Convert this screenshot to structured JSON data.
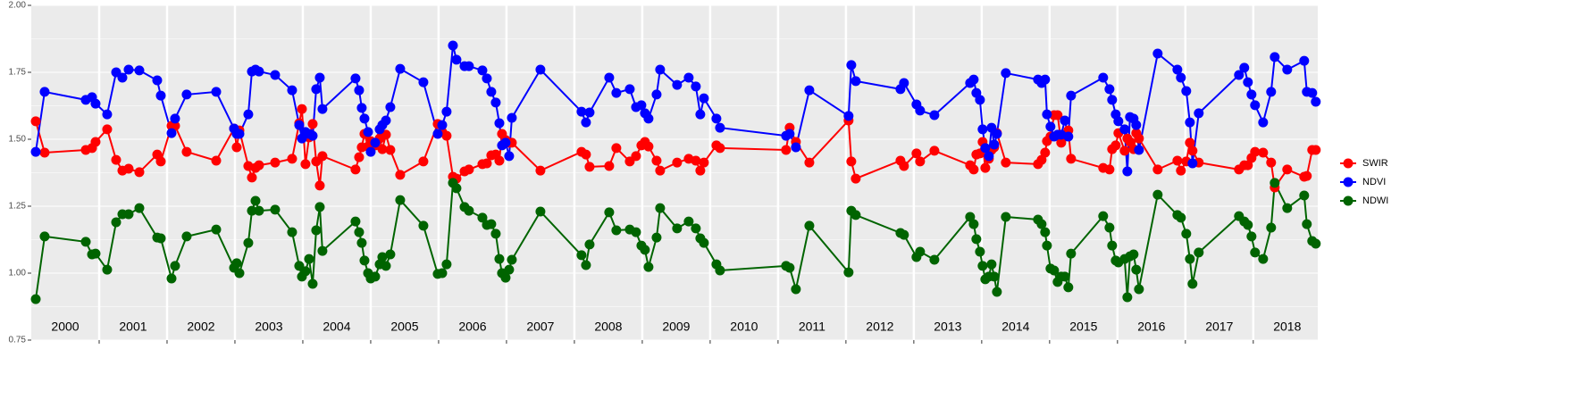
{
  "chart_data": {
    "type": "line",
    "x": [
      2000.066,
      2000.197,
      2000.803,
      2000.895,
      2000.947,
      2001.118,
      2001.25,
      2001.342,
      2001.434,
      2001.592,
      2001.855,
      2001.908,
      2002.066,
      2002.118,
      2002.289,
      2002.724,
      2002.987,
      2003.026,
      2003.066,
      2003.197,
      2003.25,
      2003.303,
      2003.355,
      2003.592,
      2003.842,
      2003.947,
      2003.987,
      2004.039,
      2004.092,
      2004.145,
      2004.197,
      2004.25,
      2004.289,
      2004.776,
      2004.829,
      2004.868,
      2004.908,
      2004.961,
      2005.0,
      2005.066,
      2005.132,
      2005.171,
      2005.224,
      2005.289,
      2005.434,
      2005.776,
      2005.987,
      2006.053,
      2006.118,
      2006.211,
      2006.263,
      2006.382,
      2006.447,
      2006.645,
      2006.711,
      2006.776,
      2006.842,
      2006.895,
      2006.934,
      2006.987,
      2007.039,
      2007.079,
      2007.5,
      2008.105,
      2008.171,
      2008.224,
      2008.513,
      2008.618,
      2008.816,
      2008.908,
      2008.987,
      2009.039,
      2009.092,
      2009.211,
      2009.263,
      2009.513,
      2009.684,
      2009.789,
      2009.855,
      2009.908,
      2010.092,
      2010.145,
      2011.118,
      2011.171,
      2011.263,
      2011.461,
      2012.039,
      2012.079,
      2012.145,
      2012.803,
      2012.855,
      2013.039,
      2013.092,
      2013.303,
      2013.829,
      2013.882,
      2013.921,
      2013.974,
      2014.013,
      2014.053,
      2014.105,
      2014.145,
      2014.184,
      2014.224,
      2014.355,
      2014.829,
      2014.882,
      2014.934,
      2014.961,
      2015.013,
      2015.066,
      2015.118,
      2015.171,
      2015.224,
      2015.276,
      2015.316,
      2015.789,
      2015.882,
      2015.921,
      2015.974,
      2016.013,
      2016.105,
      2016.145,
      2016.184,
      2016.237,
      2016.276,
      2016.316,
      2016.592,
      2016.882,
      2016.934,
      2017.013,
      2017.066,
      2017.105,
      2017.197,
      2017.789,
      2017.868,
      2017.921,
      2017.974,
      2018.026,
      2018.145,
      2018.263,
      2018.316,
      2018.5,
      2018.75,
      2018.789,
      2018.868,
      2018.921
    ],
    "series": [
      {
        "name": "SWIR",
        "color": "#ff0000",
        "values": [
          1.567,
          1.45,
          1.46,
          1.467,
          1.49,
          1.537,
          1.423,
          1.383,
          1.39,
          1.377,
          1.443,
          1.417,
          1.55,
          1.55,
          1.453,
          1.42,
          1.54,
          1.47,
          1.533,
          1.4,
          1.357,
          1.393,
          1.403,
          1.413,
          1.427,
          1.56,
          1.613,
          1.407,
          1.507,
          1.557,
          1.417,
          1.327,
          1.437,
          1.387,
          1.433,
          1.47,
          1.52,
          1.473,
          1.493,
          1.477,
          1.503,
          1.463,
          1.517,
          1.46,
          1.367,
          1.417,
          1.557,
          1.527,
          1.513,
          1.36,
          1.353,
          1.38,
          1.387,
          1.407,
          1.41,
          1.44,
          1.443,
          1.42,
          1.52,
          1.497,
          1.487,
          1.487,
          1.383,
          1.453,
          1.443,
          1.397,
          1.4,
          1.467,
          1.417,
          1.437,
          1.477,
          1.49,
          1.473,
          1.42,
          1.383,
          1.413,
          1.427,
          1.42,
          1.383,
          1.413,
          1.477,
          1.467,
          1.46,
          1.543,
          1.49,
          1.413,
          1.57,
          1.417,
          1.353,
          1.42,
          1.4,
          1.447,
          1.417,
          1.457,
          1.403,
          1.387,
          1.443,
          1.447,
          1.49,
          1.393,
          1.427,
          1.46,
          1.47,
          1.523,
          1.413,
          1.407,
          1.423,
          1.45,
          1.493,
          1.51,
          1.59,
          1.59,
          1.487,
          1.51,
          1.533,
          1.427,
          1.393,
          1.387,
          1.463,
          1.477,
          1.523,
          1.457,
          1.503,
          1.49,
          1.463,
          1.523,
          1.503,
          1.387,
          1.42,
          1.383,
          1.417,
          1.487,
          1.457,
          1.413,
          1.387,
          1.403,
          1.403,
          1.43,
          1.453,
          1.45,
          1.413,
          1.32,
          1.387,
          1.36,
          1.363,
          1.46,
          1.46
        ]
      },
      {
        "name": "NDVI",
        "color": "#0000ff",
        "values": [
          1.453,
          1.677,
          1.647,
          1.657,
          1.633,
          1.593,
          1.75,
          1.73,
          1.76,
          1.757,
          1.72,
          1.663,
          1.523,
          1.577,
          1.667,
          1.677,
          1.54,
          1.52,
          1.52,
          1.593,
          1.753,
          1.76,
          1.753,
          1.74,
          1.683,
          1.553,
          1.503,
          1.527,
          1.52,
          1.513,
          1.687,
          1.73,
          1.613,
          1.727,
          1.683,
          1.617,
          1.577,
          1.527,
          1.453,
          1.487,
          1.537,
          1.553,
          1.57,
          1.62,
          1.763,
          1.713,
          1.52,
          1.553,
          1.603,
          1.85,
          1.797,
          1.773,
          1.773,
          1.757,
          1.727,
          1.677,
          1.637,
          1.56,
          1.477,
          1.487,
          1.437,
          1.58,
          1.76,
          1.603,
          1.563,
          1.6,
          1.73,
          1.673,
          1.687,
          1.62,
          1.627,
          1.597,
          1.577,
          1.667,
          1.76,
          1.703,
          1.73,
          1.697,
          1.593,
          1.653,
          1.577,
          1.543,
          1.513,
          1.52,
          1.47,
          1.683,
          1.587,
          1.777,
          1.717,
          1.687,
          1.71,
          1.63,
          1.607,
          1.59,
          1.71,
          1.723,
          1.673,
          1.647,
          1.537,
          1.467,
          1.437,
          1.543,
          1.48,
          1.52,
          1.747,
          1.723,
          1.71,
          1.723,
          1.593,
          1.547,
          1.51,
          1.517,
          1.517,
          1.57,
          1.51,
          1.663,
          1.73,
          1.687,
          1.647,
          1.593,
          1.567,
          1.537,
          1.38,
          1.583,
          1.577,
          1.553,
          1.46,
          1.82,
          1.76,
          1.73,
          1.68,
          1.563,
          1.41,
          1.597,
          1.74,
          1.767,
          1.713,
          1.667,
          1.627,
          1.563,
          1.677,
          1.807,
          1.76,
          1.793,
          1.677,
          1.673,
          1.64
        ]
      },
      {
        "name": "NDWI",
        "color": "#006400",
        "values": [
          0.903,
          1.137,
          1.117,
          1.07,
          1.073,
          1.013,
          1.19,
          1.22,
          1.22,
          1.243,
          1.133,
          1.13,
          0.98,
          1.027,
          1.137,
          1.163,
          1.02,
          1.037,
          1.0,
          1.113,
          1.233,
          1.27,
          1.233,
          1.237,
          1.153,
          1.027,
          0.987,
          1.007,
          1.053,
          0.96,
          1.16,
          1.247,
          1.083,
          1.193,
          1.153,
          1.113,
          1.047,
          1.0,
          0.98,
          0.987,
          1.033,
          1.06,
          1.027,
          1.07,
          1.273,
          1.177,
          0.997,
          1.0,
          1.033,
          1.337,
          1.317,
          1.247,
          1.233,
          1.207,
          1.18,
          1.183,
          1.147,
          1.053,
          1.0,
          0.983,
          1.013,
          1.05,
          1.23,
          1.067,
          1.03,
          1.107,
          1.227,
          1.16,
          1.163,
          1.153,
          1.103,
          1.087,
          1.023,
          1.133,
          1.243,
          1.167,
          1.193,
          1.167,
          1.13,
          1.113,
          1.033,
          1.01,
          1.027,
          1.02,
          0.94,
          1.177,
          1.003,
          1.233,
          1.217,
          1.15,
          1.143,
          1.06,
          1.08,
          1.05,
          1.21,
          1.183,
          1.127,
          1.08,
          1.027,
          0.977,
          0.987,
          1.033,
          0.987,
          0.93,
          1.21,
          1.2,
          1.183,
          1.153,
          1.103,
          1.017,
          1.01,
          0.967,
          0.987,
          0.987,
          0.947,
          1.073,
          1.213,
          1.17,
          1.103,
          1.047,
          1.04,
          1.053,
          0.91,
          1.063,
          1.07,
          1.013,
          0.94,
          1.293,
          1.217,
          1.207,
          1.147,
          1.053,
          0.96,
          1.077,
          1.213,
          1.193,
          1.18,
          1.137,
          1.077,
          1.053,
          1.17,
          1.337,
          1.243,
          1.29,
          1.183,
          1.12,
          1.11
        ]
      }
    ],
    "xlim": [
      2000,
      2018.95
    ],
    "xticks": [
      {
        "value": 2000.5,
        "label": "2000"
      },
      {
        "value": 2001.5,
        "label": "2001"
      },
      {
        "value": 2002.5,
        "label": "2002"
      },
      {
        "value": 2003.5,
        "label": "2003"
      },
      {
        "value": 2004.5,
        "label": "2004"
      },
      {
        "value": 2005.5,
        "label": "2005"
      },
      {
        "value": 2006.5,
        "label": "2006"
      },
      {
        "value": 2007.5,
        "label": "2007"
      },
      {
        "value": 2008.5,
        "label": "2008"
      },
      {
        "value": 2009.5,
        "label": "2009"
      },
      {
        "value": 2010.5,
        "label": "2010"
      },
      {
        "value": 2011.5,
        "label": "2011"
      },
      {
        "value": 2012.5,
        "label": "2012"
      },
      {
        "value": 2013.5,
        "label": "2013"
      },
      {
        "value": 2014.5,
        "label": "2014"
      },
      {
        "value": 2015.5,
        "label": "2015"
      },
      {
        "value": 2016.5,
        "label": "2016"
      },
      {
        "value": 2017.5,
        "label": "2017"
      },
      {
        "value": 2018.5,
        "label": "2018"
      }
    ],
    "ylim": [
      0.75,
      2.0
    ],
    "yticks": [
      0.75,
      {
        "value": 1.0,
        "label": "1.00"
      },
      1.25,
      {
        "value": 1.5,
        "label": "1.50"
      },
      1.75,
      {
        "value": 2.0,
        "label": "2.00"
      }
    ],
    "grid": true,
    "legend": "right"
  }
}
